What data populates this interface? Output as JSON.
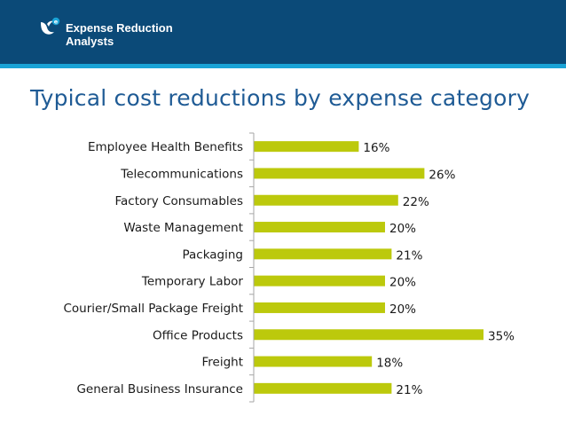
{
  "header": {
    "brand_line1": "Expense Reduction",
    "brand_line2": "Analysts",
    "colors": {
      "band": "#0b4a78",
      "stripe": "#1aa3d6"
    }
  },
  "slide": {
    "title": "Typical cost reductions by expense category"
  },
  "chart_data": {
    "type": "bar",
    "orientation": "horizontal",
    "title": "Typical cost reductions by expense category",
    "xlabel": "",
    "ylabel": "",
    "xlim": [
      0,
      35
    ],
    "grid": false,
    "bar_color": "#bcc90c",
    "categories": [
      "Employee Health Benefits",
      "Telecommunications",
      "Factory Consumables",
      "Waste Management",
      "Packaging",
      "Temporary Labor",
      "Courier/Small Package Freight",
      "Office Products",
      "Freight",
      "General Business Insurance"
    ],
    "values": [
      16,
      26,
      22,
      20,
      21,
      20,
      20,
      35,
      18,
      21
    ],
    "value_labels": [
      "16%",
      "26%",
      "22%",
      "20%",
      "21%",
      "20%",
      "20%",
      "35%",
      "18%",
      "21%"
    ]
  }
}
